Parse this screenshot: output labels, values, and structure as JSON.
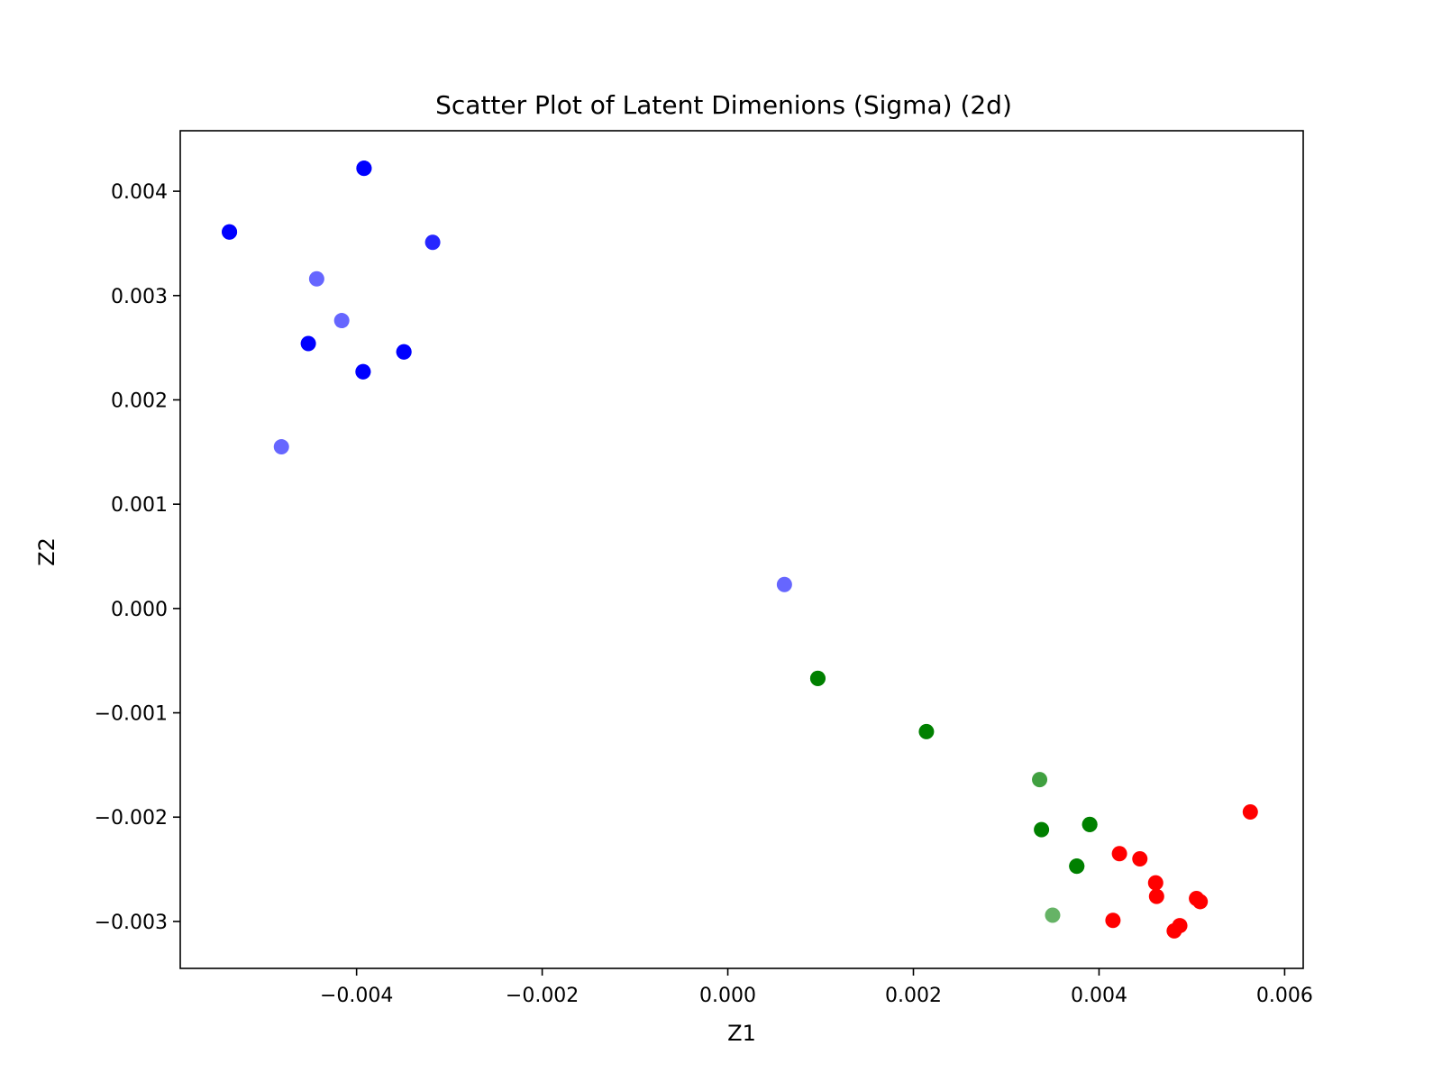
{
  "chart_data": {
    "type": "scatter",
    "title": "Scatter Plot of Latent Dimenions (Sigma) (2d)",
    "xlabel": "Z1",
    "ylabel": "Z2",
    "xlim": [
      -0.0059,
      0.0062
    ],
    "ylim": [
      -0.00345,
      0.00458
    ],
    "xticks": [
      -0.004,
      -0.002,
      0.0,
      0.002,
      0.004,
      0.006
    ],
    "xtick_labels": [
      "−0.004",
      "−0.002",
      "0.000",
      "0.002",
      "0.004",
      "0.006"
    ],
    "yticks": [
      -0.003,
      -0.002,
      -0.001,
      0.0,
      0.001,
      0.002,
      0.003,
      0.004
    ],
    "ytick_labels": [
      "−0.003",
      "−0.002",
      "−0.001",
      "0.000",
      "0.001",
      "0.002",
      "0.003",
      "0.004"
    ],
    "grid": false,
    "series": [
      {
        "name": "blue",
        "color": "#0000ff",
        "points": [
          {
            "x": -0.00537,
            "y": 0.00361,
            "alpha": 1.0
          },
          {
            "x": -0.00537,
            "y": 0.00361,
            "alpha": 1.0
          },
          {
            "x": -0.00392,
            "y": 0.00422,
            "alpha": 1.0
          },
          {
            "x": -0.00392,
            "y": 0.00422,
            "alpha": 1.0
          },
          {
            "x": -0.00318,
            "y": 0.00351,
            "alpha": 0.85
          },
          {
            "x": -0.00443,
            "y": 0.00316,
            "alpha": 0.6
          },
          {
            "x": -0.00416,
            "y": 0.00276,
            "alpha": 0.6
          },
          {
            "x": -0.00452,
            "y": 0.00254,
            "alpha": 1.0
          },
          {
            "x": -0.00349,
            "y": 0.00246,
            "alpha": 1.0
          },
          {
            "x": -0.00349,
            "y": 0.00246,
            "alpha": 1.0
          },
          {
            "x": -0.00393,
            "y": 0.00227,
            "alpha": 1.0
          },
          {
            "x": -0.00393,
            "y": 0.00227,
            "alpha": 1.0
          },
          {
            "x": -0.00481,
            "y": 0.00155,
            "alpha": 0.6
          },
          {
            "x": 0.00061,
            "y": 0.00023,
            "alpha": 0.6
          }
        ]
      },
      {
        "name": "green",
        "color": "#008000",
        "points": [
          {
            "x": 0.00097,
            "y": -0.00067,
            "alpha": 1.0
          },
          {
            "x": 0.00097,
            "y": -0.00067,
            "alpha": 1.0
          },
          {
            "x": 0.00214,
            "y": -0.00118,
            "alpha": 1.0
          },
          {
            "x": 0.00336,
            "y": -0.00164,
            "alpha": 0.75
          },
          {
            "x": 0.00338,
            "y": -0.00212,
            "alpha": 1.0
          },
          {
            "x": 0.0039,
            "y": -0.00207,
            "alpha": 1.0
          },
          {
            "x": 0.0039,
            "y": -0.00207,
            "alpha": 1.0
          },
          {
            "x": 0.00376,
            "y": -0.00247,
            "alpha": 1.0
          },
          {
            "x": 0.00376,
            "y": -0.00247,
            "alpha": 1.0
          },
          {
            "x": 0.0035,
            "y": -0.00294,
            "alpha": 0.6
          }
        ]
      },
      {
        "name": "red",
        "color": "#ff0000",
        "points": [
          {
            "x": 0.00563,
            "y": -0.00195,
            "alpha": 1.0
          },
          {
            "x": 0.00422,
            "y": -0.00235,
            "alpha": 1.0
          },
          {
            "x": 0.00444,
            "y": -0.0024,
            "alpha": 1.0
          },
          {
            "x": 0.00461,
            "y": -0.00263,
            "alpha": 1.0
          },
          {
            "x": 0.00462,
            "y": -0.00276,
            "alpha": 1.0
          },
          {
            "x": 0.00505,
            "y": -0.00278,
            "alpha": 1.0
          },
          {
            "x": 0.00509,
            "y": -0.00281,
            "alpha": 1.0
          },
          {
            "x": 0.00415,
            "y": -0.00299,
            "alpha": 1.0
          },
          {
            "x": 0.00487,
            "y": -0.00304,
            "alpha": 1.0
          },
          {
            "x": 0.00481,
            "y": -0.00309,
            "alpha": 1.0
          }
        ]
      }
    ]
  }
}
